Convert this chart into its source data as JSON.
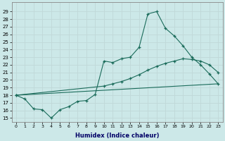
{
  "xlabel": "Humidex (Indice chaleur)",
  "background_color": "#cce8e8",
  "grid_color": "#aacccc",
  "line_color": "#1a6b5a",
  "xlim": [
    -0.5,
    23.5
  ],
  "ylim": [
    14.5,
    30.2
  ],
  "xticks": [
    0,
    1,
    2,
    3,
    4,
    5,
    6,
    7,
    8,
    9,
    10,
    11,
    12,
    13,
    14,
    15,
    16,
    17,
    18,
    19,
    20,
    21,
    22,
    23
  ],
  "yticks": [
    15,
    16,
    17,
    18,
    19,
    20,
    21,
    22,
    23,
    24,
    25,
    26,
    27,
    28,
    29
  ],
  "curve1_x": [
    0,
    1,
    2,
    3,
    4,
    5,
    6,
    7,
    8,
    9,
    10,
    11,
    12,
    13,
    14,
    15,
    16,
    17,
    18,
    19,
    20,
    21,
    22,
    23
  ],
  "curve1_y": [
    18.0,
    17.5,
    16.2,
    16.1,
    15.0,
    16.1,
    16.5,
    17.2,
    17.3,
    18.1,
    22.5,
    22.3,
    22.8,
    23.0,
    24.3,
    28.7,
    29.0,
    26.8,
    25.8,
    24.5,
    23.0,
    22.0,
    20.8,
    19.5
  ],
  "curve2_x": [
    0,
    10,
    11,
    12,
    13,
    14,
    15,
    16,
    17,
    18,
    19,
    20,
    21,
    22,
    23
  ],
  "curve2_y": [
    18.0,
    19.2,
    19.5,
    19.8,
    20.2,
    20.7,
    21.3,
    21.8,
    22.2,
    22.5,
    22.8,
    22.7,
    22.5,
    22.0,
    21.0
  ],
  "curve3_x": [
    0,
    23
  ],
  "curve3_y": [
    18.0,
    19.5
  ]
}
